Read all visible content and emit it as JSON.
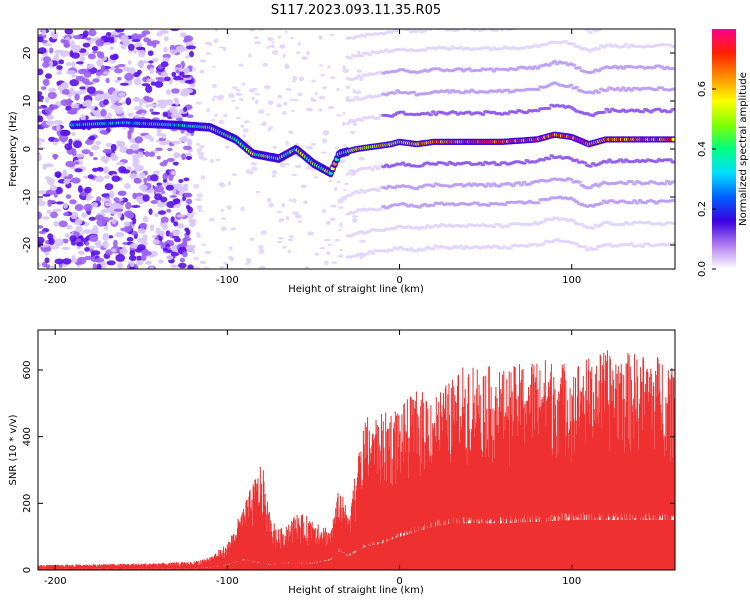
{
  "title": "S117.2023.093.11.35.R05",
  "chart_data": [
    {
      "type": "heatmap",
      "xlabel": "Height of straight line (km)",
      "ylabel": "Frequency (Hz)",
      "xlim": [
        -210,
        160
      ],
      "ylim": [
        -25,
        25
      ],
      "xticks": [
        -200,
        -100,
        0,
        100
      ],
      "yticks": [
        -20,
        -10,
        0,
        10,
        20
      ],
      "colorbar": {
        "label": "Normalized spectral amplitude",
        "range": [
          0,
          0.8
        ],
        "ticks": [
          "0.0",
          "0.2",
          "0.4",
          "0.6"
        ],
        "colors": [
          "#ffffff",
          "#b07cf0",
          "#3a00e0",
          "#0060ff",
          "#00e0ff",
          "#00ff80",
          "#80ff00",
          "#ffff00",
          "#ff9000",
          "#ff2000",
          "#ff0090"
        ]
      },
      "ridge": {
        "x": [
          -190,
          -160,
          -130,
          -110,
          -95,
          -85,
          -70,
          -60,
          -50,
          -40,
          -35,
          -25,
          -15,
          -5,
          0,
          10,
          20,
          40,
          60,
          80,
          90,
          100,
          110,
          120,
          140,
          160
        ],
        "y": [
          5,
          5.5,
          5,
          4.5,
          2,
          -1,
          -2,
          0,
          -3,
          -5,
          -1,
          0,
          0.5,
          1,
          1.5,
          1,
          1.5,
          1.5,
          1.5,
          2,
          3,
          2.5,
          1,
          2,
          2,
          2
        ]
      }
    },
    {
      "type": "area",
      "xlabel": "Height of straight line (km)",
      "ylabel": "SNR (10 * v/v)",
      "xlim": [
        -210,
        160
      ],
      "ylim": [
        0,
        720
      ],
      "xticks": [
        -200,
        -100,
        0,
        100
      ],
      "yticks": [
        0,
        200,
        400,
        600
      ],
      "color": "#ee3030",
      "envelope_x": [
        -210,
        -150,
        -120,
        -110,
        -100,
        -90,
        -80,
        -75,
        -70,
        -60,
        -50,
        -40,
        -35,
        -30,
        -20,
        -10,
        0,
        10,
        20,
        30,
        40,
        60,
        80,
        100,
        120,
        140,
        160
      ],
      "envelope_upper": [
        15,
        20,
        25,
        40,
        80,
        200,
        330,
        160,
        120,
        170,
        160,
        120,
        250,
        180,
        460,
        470,
        490,
        540,
        530,
        570,
        630,
        600,
        640,
        620,
        660,
        650,
        640
      ],
      "envelope_lower": [
        5,
        5,
        5,
        8,
        15,
        30,
        20,
        15,
        20,
        20,
        20,
        30,
        60,
        40,
        70,
        80,
        100,
        115,
        130,
        140,
        140,
        140,
        145,
        150,
        150,
        150,
        150
      ]
    }
  ]
}
